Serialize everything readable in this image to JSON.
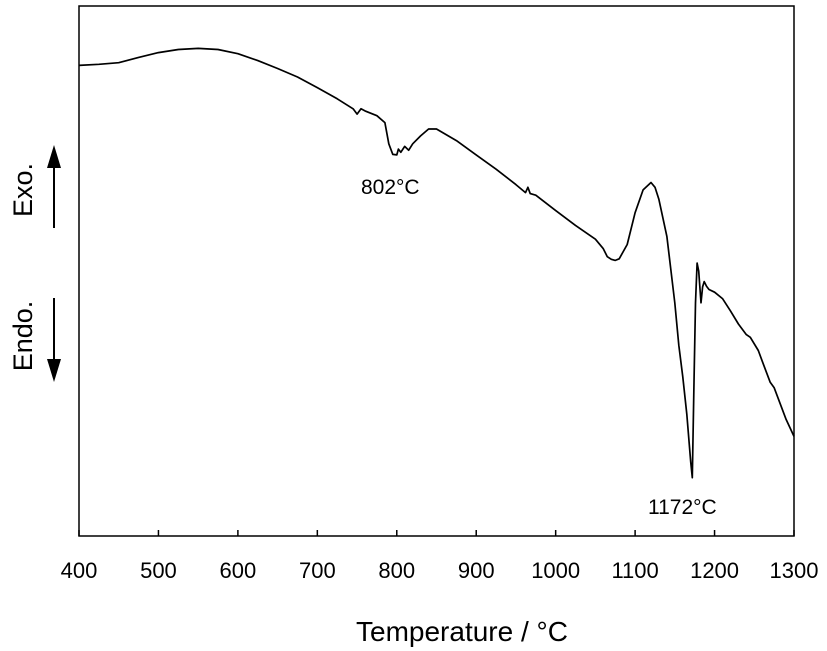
{
  "chart_data": {
    "type": "line",
    "title": "",
    "xlabel": "Temperature / °C",
    "ylabel": "",
    "xlim": [
      400,
      1300
    ],
    "x_ticks": [
      "400",
      "500",
      "600",
      "700",
      "800",
      "900",
      "1000",
      "1100",
      "1200",
      "1300"
    ],
    "y_ticks_shown": false,
    "grid": false,
    "side_labels": {
      "exo": "Exo.",
      "endo": "Endo."
    },
    "annotations": [
      {
        "text": "802°C",
        "x": 802
      },
      {
        "text": "1172°C",
        "x": 1172
      }
    ],
    "ylim": [
      0,
      1
    ],
    "series": [
      {
        "x": [
          400,
          425,
          450,
          475,
          500,
          525,
          550,
          575,
          600,
          625,
          650,
          675,
          700,
          725,
          745,
          750,
          755,
          760,
          775,
          785,
          790,
          795,
          800,
          802,
          805,
          810,
          815,
          820,
          830,
          840,
          850,
          875,
          900,
          925,
          950,
          962,
          965,
          968,
          975,
          1000,
          1025,
          1050,
          1060,
          1065,
          1070,
          1075,
          1080,
          1090,
          1100,
          1110,
          1120,
          1125,
          1130,
          1140,
          1150,
          1155,
          1160,
          1165,
          1170,
          1172,
          1174,
          1176,
          1178,
          1180,
          1183,
          1185,
          1187,
          1190,
          1193,
          1200,
          1210,
          1220,
          1230,
          1240,
          1245,
          1255,
          1260,
          1265,
          1270,
          1275,
          1280,
          1290,
          1300
        ],
        "y": [
          0.888,
          0.89,
          0.893,
          0.903,
          0.912,
          0.918,
          0.92,
          0.918,
          0.91,
          0.897,
          0.882,
          0.866,
          0.846,
          0.825,
          0.806,
          0.796,
          0.806,
          0.802,
          0.793,
          0.78,
          0.74,
          0.72,
          0.719,
          0.73,
          0.724,
          0.735,
          0.728,
          0.74,
          0.755,
          0.768,
          0.768,
          0.746,
          0.719,
          0.692,
          0.663,
          0.648,
          0.658,
          0.646,
          0.643,
          0.614,
          0.586,
          0.56,
          0.542,
          0.527,
          0.522,
          0.52,
          0.523,
          0.55,
          0.61,
          0.653,
          0.667,
          0.658,
          0.635,
          0.565,
          0.44,
          0.36,
          0.3,
          0.23,
          0.14,
          0.11,
          0.28,
          0.44,
          0.515,
          0.5,
          0.44,
          0.47,
          0.48,
          0.471,
          0.465,
          0.46,
          0.448,
          0.425,
          0.4,
          0.38,
          0.375,
          0.35,
          0.33,
          0.31,
          0.29,
          0.28,
          0.26,
          0.22,
          0.188
        ]
      }
    ]
  }
}
